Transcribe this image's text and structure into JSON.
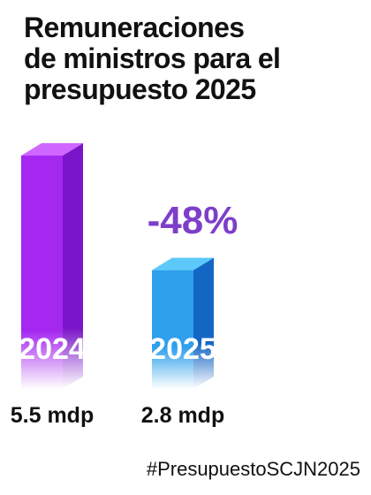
{
  "title_lines": [
    "Remuneraciones",
    "de ministros para el",
    "presupuesto 2025"
  ],
  "hashtag": "#PresupuestoSCJN2025",
  "chart_data": {
    "type": "bar",
    "categories": [
      "2024",
      "2025"
    ],
    "values": [
      5.5,
      2.8
    ],
    "value_labels": [
      "5.5 mdp",
      "2.8 mdp"
    ],
    "unit": "mdp",
    "change_label": "-48%",
    "colors": {
      "2024": {
        "front": "#a528f0",
        "side": "#7a14c8",
        "top": "#cf66ff"
      },
      "2025": {
        "front": "#2ea0ec",
        "side": "#1366c4",
        "top": "#5cc9fa"
      },
      "change": "#7d3fc9"
    }
  }
}
